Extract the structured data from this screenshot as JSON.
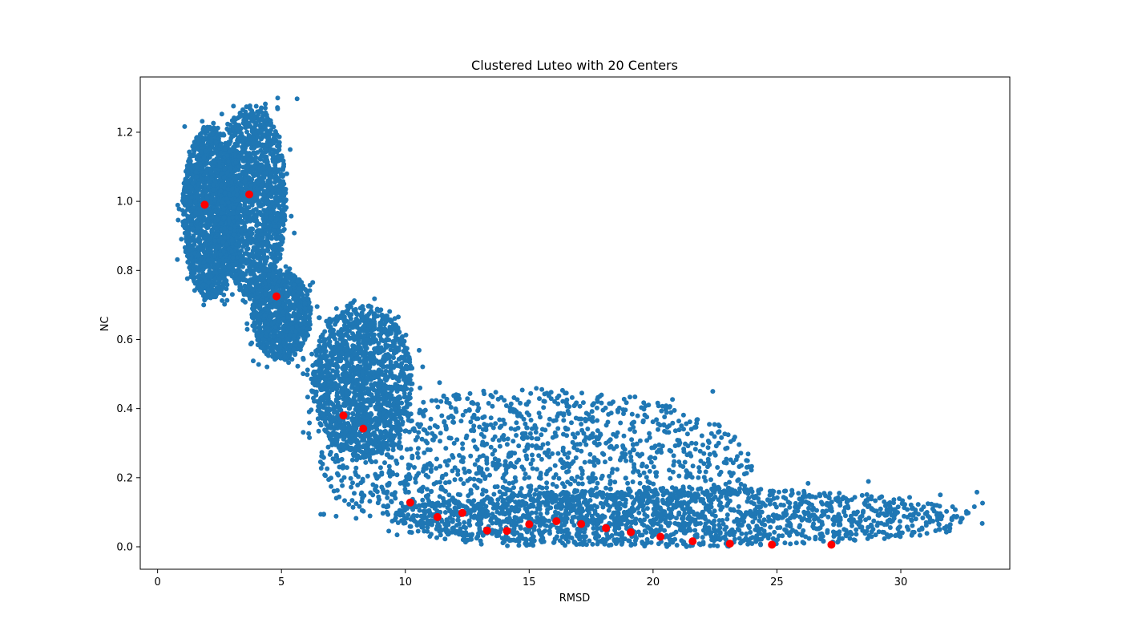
{
  "chart_data": {
    "type": "scatter",
    "title": "Clustered Luteo with 20 Centers",
    "xlabel": "RMSD",
    "ylabel": "NC",
    "xlim": [
      -0.7,
      34.4
    ],
    "ylim": [
      -0.065,
      1.36
    ],
    "xticks": [
      0,
      5,
      10,
      15,
      20,
      25,
      30
    ],
    "xtick_labels": [
      "0",
      "5",
      "10",
      "15",
      "20",
      "25",
      "30"
    ],
    "yticks": [
      0.0,
      0.2,
      0.4,
      0.6,
      0.8,
      1.0,
      1.2
    ],
    "ytick_labels": [
      "0.0",
      "0.2",
      "0.4",
      "0.6",
      "0.8",
      "1.0",
      "1.2"
    ],
    "grid": false,
    "legend": "none",
    "series": [
      {
        "role": "points",
        "color": "#1f77b4",
        "regions": [
          {
            "x": [
              1.0,
              3.3
            ],
            "y": [
              0.72,
              1.22
            ]
          },
          {
            "x": [
              2.5,
              5.2
            ],
            "y": [
              0.72,
              1.28
            ]
          },
          {
            "x": [
              3.8,
              6.2
            ],
            "y": [
              0.54,
              0.8
            ]
          },
          {
            "x": [
              6.2,
              10.3
            ],
            "y": [
              0.26,
              0.7
            ]
          },
          {
            "x": [
              6.5,
              24.0
            ],
            "y": [
              0.0,
              0.46
            ]
          },
          {
            "x": [
              9.5,
              33.0
            ],
            "y": [
              0.0,
              0.17
            ]
          }
        ]
      },
      {
        "role": "centers",
        "color": "#ff0000",
        "x": [
          1.9,
          3.7,
          4.8,
          7.5,
          8.3,
          10.2,
          11.3,
          12.3,
          13.3,
          14.1,
          15.0,
          16.1,
          17.1,
          18.1,
          19.1,
          20.3,
          21.6,
          23.1,
          24.8,
          27.2
        ],
        "y": [
          0.99,
          1.02,
          0.725,
          0.38,
          0.342,
          0.128,
          0.086,
          0.098,
          0.047,
          0.046,
          0.065,
          0.074,
          0.066,
          0.054,
          0.042,
          0.029,
          0.016,
          0.009,
          0.006,
          0.006
        ]
      }
    ]
  }
}
